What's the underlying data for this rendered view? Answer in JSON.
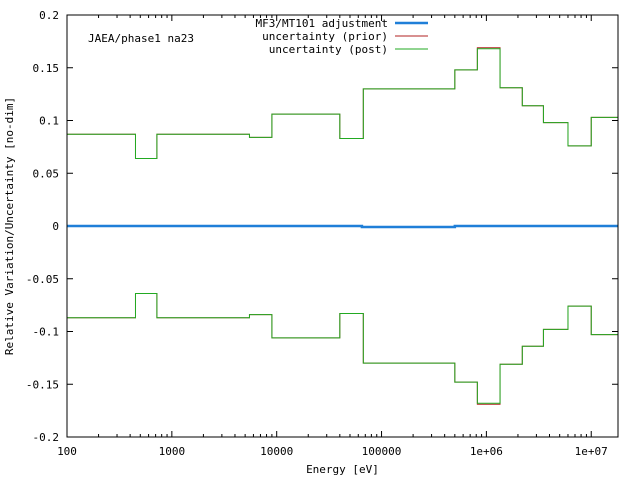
{
  "chart_data": {
    "type": "line",
    "annotation": "JAEA/phase1 na23",
    "xlabel": "Energy [eV]",
    "ylabel": "Relative Variation/Uncertainty [no-dim]",
    "xscale": "log",
    "xlim": [
      100,
      18000000
    ],
    "ylim": [
      -0.2,
      0.2
    ],
    "x_ticks": [
      {
        "value": 100,
        "label": "100"
      },
      {
        "value": 1000,
        "label": "1000"
      },
      {
        "value": 10000,
        "label": "10000"
      },
      {
        "value": 100000,
        "label": "100000"
      },
      {
        "value": 1000000,
        "label": "1e+06"
      },
      {
        "value": 10000000,
        "label": "1e+07"
      }
    ],
    "y_ticks": [
      {
        "value": 0.2,
        "label": "0.2"
      },
      {
        "value": 0.15,
        "label": "0.15"
      },
      {
        "value": 0.1,
        "label": "0.1"
      },
      {
        "value": 0.05,
        "label": "0.05"
      },
      {
        "value": 0,
        "label": "0"
      },
      {
        "value": -0.05,
        "label": "-0.05"
      },
      {
        "value": -0.1,
        "label": "-0.1"
      },
      {
        "value": -0.15,
        "label": "-0.15"
      },
      {
        "value": -0.2,
        "label": "-0.2"
      }
    ],
    "grid": false,
    "legend_position": "top-center",
    "series": [
      {
        "name": "MF3/MT101 adjustment",
        "color": "#1f7fd8",
        "style": "step",
        "edges": [
          100,
          65000,
          500000,
          18000000
        ],
        "values": [
          0.0,
          -0.001,
          0.0
        ]
      },
      {
        "name": "uncertainty (prior)",
        "color": "#b22222",
        "style": "step-symmetric",
        "edges": [
          100,
          450,
          720,
          5500,
          9000,
          40000,
          67000,
          500000,
          820000,
          1350000,
          2200000,
          3500000,
          6000000,
          10000000,
          18000000
        ],
        "values": [
          0.087,
          0.064,
          0.087,
          0.084,
          0.106,
          0.083,
          0.13,
          0.148,
          0.169,
          0.131,
          0.114,
          0.098,
          0.076,
          0.103
        ]
      },
      {
        "name": "uncertainty (post)",
        "color": "#22aa22",
        "style": "step-symmetric",
        "edges": [
          100,
          450,
          720,
          5500,
          9000,
          40000,
          67000,
          500000,
          820000,
          1350000,
          2200000,
          3500000,
          6000000,
          10000000,
          18000000
        ],
        "values": [
          0.087,
          0.064,
          0.087,
          0.084,
          0.106,
          0.083,
          0.13,
          0.148,
          0.168,
          0.131,
          0.114,
          0.098,
          0.076,
          0.103
        ]
      }
    ]
  }
}
